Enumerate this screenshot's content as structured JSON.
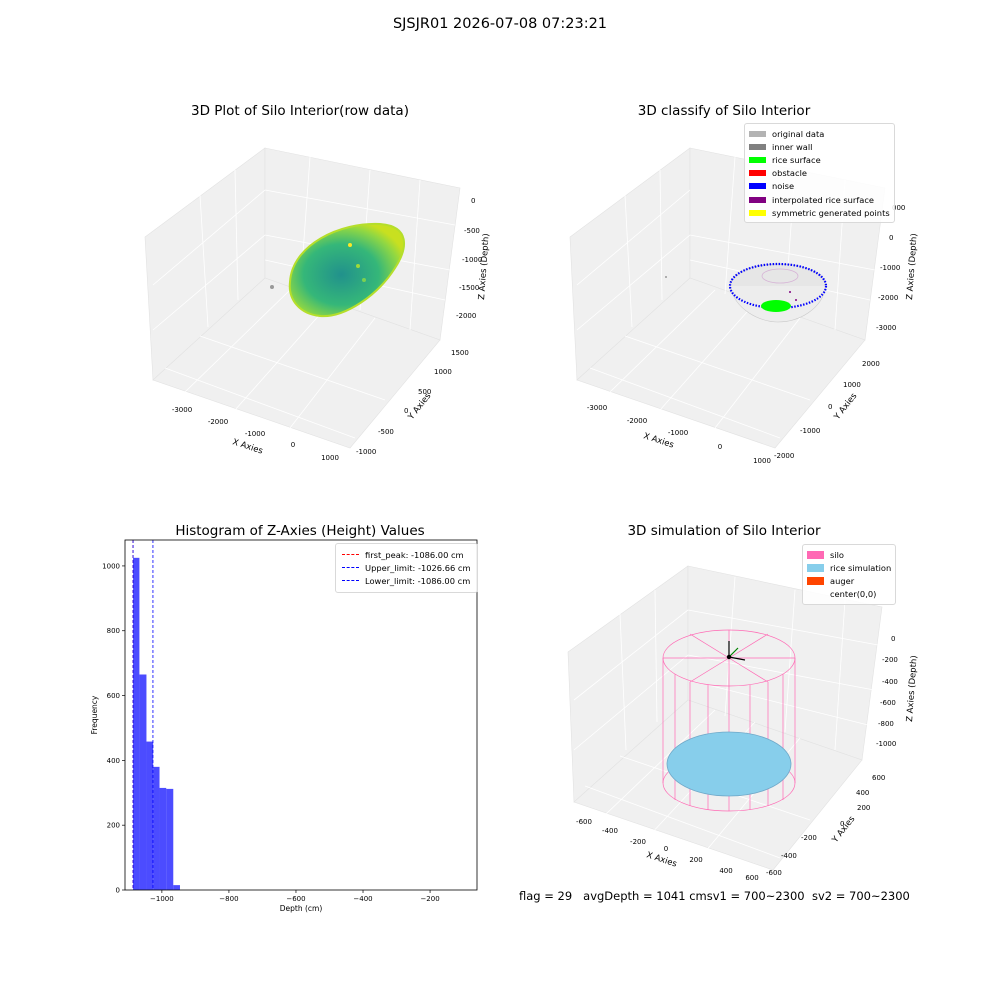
{
  "suptitle": "SJSJR01 2026-07-08 07:23:21",
  "footer": {
    "flag": "flag = 29",
    "avg_depth": "avgDepth = 1041 cmsv1 = 700~2300",
    "sv2": "sv2 = 700~2300"
  },
  "colors": {
    "rice_surface": "#00ff00",
    "noise": "#0000ff",
    "silo": "#ff69b4",
    "rice_simulation": "#87ceeb",
    "auger": "#ff4500",
    "histogram_bar": "#0000ff"
  },
  "chart_data": [
    {
      "type": "scatter",
      "projection": "3d",
      "title": "3D Plot of Silo Interior(row data)",
      "xlabel": "X Axies",
      "ylabel": "Y Axies",
      "zlabel": "Z Axies (Depth)",
      "x_ticks": [
        "-3000",
        "-2000",
        "-1000",
        "0",
        "1000"
      ],
      "y_ticks": [
        "-1000",
        "-500",
        "0",
        "500",
        "1000",
        "1500"
      ],
      "z_ticks": [
        "0",
        "-500",
        "-1000",
        "-1500",
        "-2000"
      ],
      "surface": "viridis colored half-ellipsoid point cloud",
      "grid": true
    },
    {
      "type": "scatter",
      "projection": "3d",
      "title": "3D classify of Silo Interior",
      "xlabel": "X Axies",
      "ylabel": "Y Axies",
      "zlabel": "Z Axies (Depth)",
      "x_ticks": [
        "-3000",
        "-2000",
        "-1000",
        "0",
        "1000"
      ],
      "y_ticks": [
        "-2000",
        "-1000",
        "0",
        "1000",
        "2000"
      ],
      "z_ticks": [
        "000",
        "0",
        "-1000",
        "-2000",
        "-3000"
      ],
      "legend": [
        {
          "label": "original data",
          "color": "#b3b3b3"
        },
        {
          "label": "inner wall",
          "color": "#808080"
        },
        {
          "label": "rice surface",
          "color": "#00ff00"
        },
        {
          "label": "obstacle",
          "color": "#ff0000"
        },
        {
          "label": "noise",
          "color": "#0000ff"
        },
        {
          "label": "interpolated rice surface",
          "color": "#800080"
        },
        {
          "label": "symmetric generated points",
          "color": "#ffff00"
        }
      ],
      "legend_position": "top-right",
      "grid": true
    },
    {
      "type": "bar",
      "title": "Histogram of Z-Axies (Height) Values",
      "xlabel": "Depth (cm)",
      "ylabel": "Frequency",
      "xlim": [
        -1110,
        -60
      ],
      "ylim": [
        0,
        1080
      ],
      "x_ticks": [
        -1000,
        -800,
        -600,
        -400,
        -200
      ],
      "y_ticks": [
        0,
        200,
        400,
        600,
        800,
        1000
      ],
      "bins": [
        {
          "from": -1086,
          "to": -1067,
          "count": 1025
        },
        {
          "from": -1067,
          "to": -1046,
          "count": 665
        },
        {
          "from": -1046,
          "to": -1026,
          "count": 458
        },
        {
          "from": -1026,
          "to": -1007,
          "count": 380
        },
        {
          "from": -1007,
          "to": -987,
          "count": 315
        },
        {
          "from": -987,
          "to": -966,
          "count": 312
        },
        {
          "from": -966,
          "to": -946,
          "count": 15
        }
      ],
      "lines": [
        {
          "label": "first_peak: -1086.00 cm",
          "x": -1086,
          "color": "#ff0000"
        },
        {
          "label": "Upper_limit: -1026.66 cm",
          "x": -1026.66,
          "color": "#0000ff"
        },
        {
          "label": "Lower_limit: -1086.00 cm",
          "x": -1086,
          "color": "#0000ff"
        }
      ],
      "legend_position": "top-right"
    },
    {
      "type": "scatter",
      "projection": "3d",
      "title": "3D simulation of Silo Interior",
      "xlabel": "X Axies",
      "ylabel": "Y Axies",
      "zlabel": "Z Axies (Depth)",
      "x_ticks": [
        "-600",
        "-400",
        "-200",
        "0",
        "200",
        "400",
        "600"
      ],
      "y_ticks": [
        "-600",
        "-400",
        "-200",
        "0",
        "200",
        "400",
        "600"
      ],
      "z_ticks": [
        "0",
        "-200",
        "-400",
        "-600",
        "-800",
        "-1000"
      ],
      "legend": [
        {
          "label": "silo",
          "color": "#ff69b4"
        },
        {
          "label": "rice simulation",
          "color": "#87ceeb"
        },
        {
          "label": "auger",
          "color": "#ff4500"
        },
        {
          "label": "center(0,0)",
          "color": ""
        }
      ],
      "legend_position": "top-right",
      "grid": true
    }
  ]
}
